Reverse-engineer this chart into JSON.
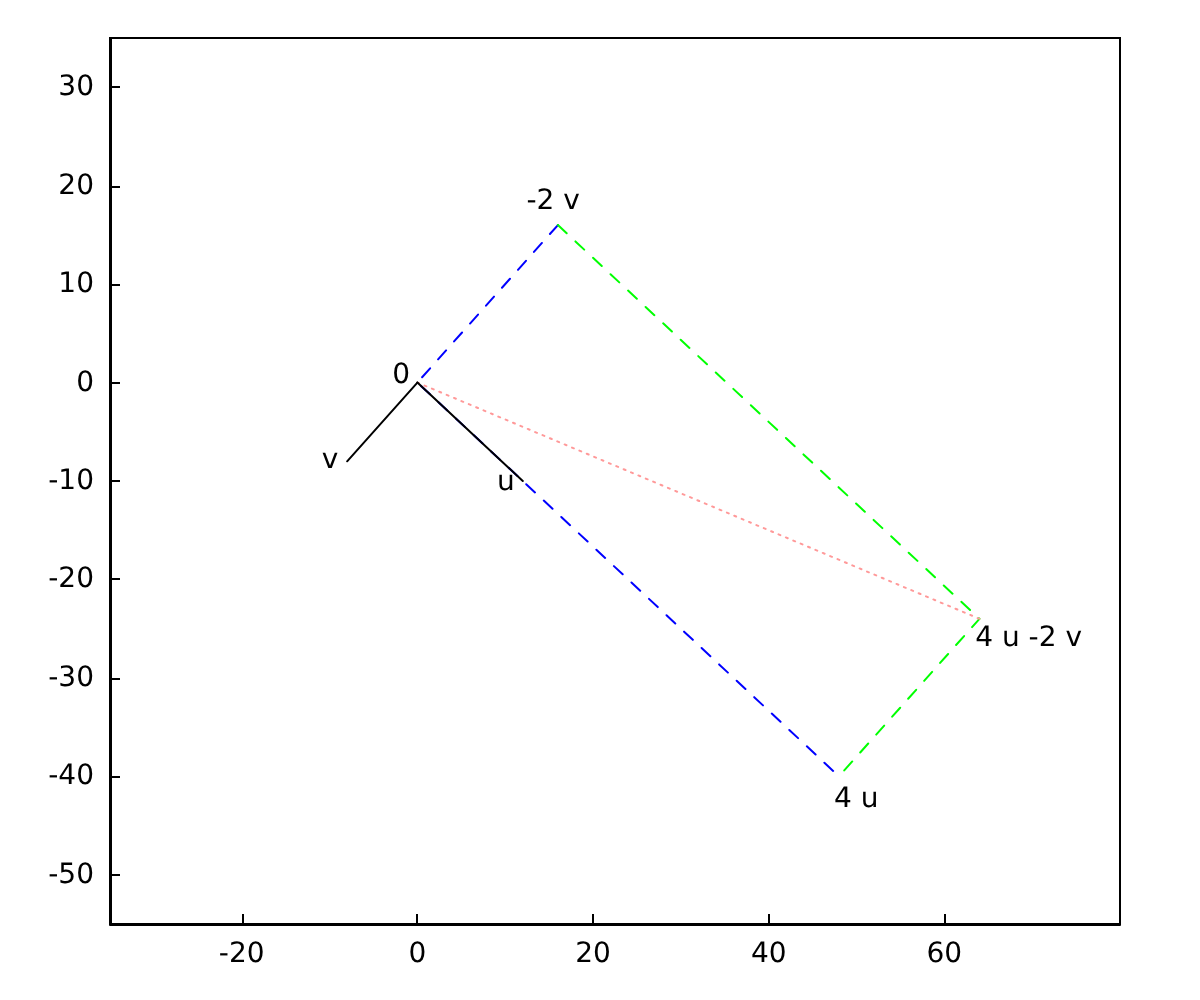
{
  "chart_data": {
    "type": "line",
    "xlim": [
      -35,
      80
    ],
    "xticks": [
      -20,
      0,
      20,
      40,
      60
    ],
    "ylim": [
      -55,
      35
    ],
    "yticks": [
      -50,
      -40,
      -30,
      -20,
      -10,
      0,
      10,
      20,
      30
    ],
    "grid": false,
    "marker": "none",
    "series": [
      {
        "x": [
          16,
          0,
          48
        ],
        "values": [
          16,
          0,
          -40
        ],
        "color": "#0000ff",
        "line_style": "dashed"
      },
      {
        "x": [
          16,
          64,
          48
        ],
        "values": [
          16,
          -24,
          -40
        ],
        "color": "#00ff00",
        "line_style": "dashed"
      },
      {
        "x": [
          64,
          0
        ],
        "values": [
          -24,
          0
        ],
        "color": "#ff9999",
        "line_style": "dotted"
      },
      {
        "x": [
          0,
          12
        ],
        "values": [
          0,
          -10
        ],
        "color": "#000000",
        "line_style": "solid"
      },
      {
        "x": [
          0,
          -8
        ],
        "values": [
          0,
          -8
        ],
        "color": "#000000",
        "line_style": "solid"
      }
    ],
    "annotations": [
      {
        "text": "0",
        "x": 0,
        "y": 0
      },
      {
        "text": "-2 v",
        "x": 16,
        "y": 16
      },
      {
        "text": "v",
        "x": -8,
        "y": -8
      },
      {
        "text": "u",
        "x": 12,
        "y": -10
      },
      {
        "text": "4 u",
        "x": 48,
        "y": -40
      },
      {
        "text": "4 u -2 v",
        "x": 64,
        "y": -24
      }
    ]
  }
}
